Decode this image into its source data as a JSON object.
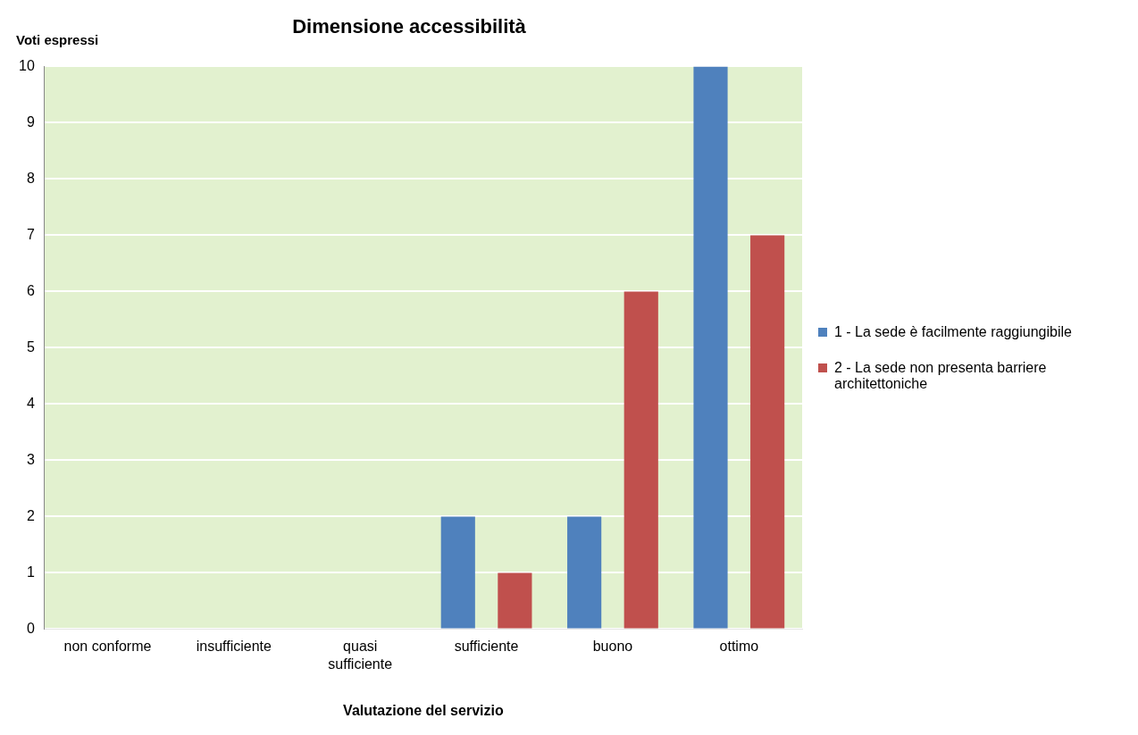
{
  "chart_data": {
    "type": "bar",
    "title": "Dimensione accessibilità",
    "xlabel": "Valutazione del servizio",
    "ylabel": "Voti espressi",
    "categories": [
      "non conforme",
      "insufficiente",
      "quasi sufficiente",
      "sufficiente",
      "buono",
      "ottimo"
    ],
    "series": [
      {
        "name": "1 - La sede è facilmente raggiungibile",
        "color": "#4f81bd",
        "values": [
          0,
          0,
          0,
          2,
          2,
          10
        ]
      },
      {
        "name": "2 - La sede non presenta barriere architettoniche",
        "color": "#c0504d",
        "values": [
          0,
          0,
          0,
          1,
          6,
          7
        ]
      }
    ],
    "ylim": [
      0,
      10
    ],
    "yticks": [
      0,
      1,
      2,
      3,
      4,
      5,
      6,
      7,
      8,
      9,
      10
    ],
    "grid": "y",
    "legend": "right"
  }
}
